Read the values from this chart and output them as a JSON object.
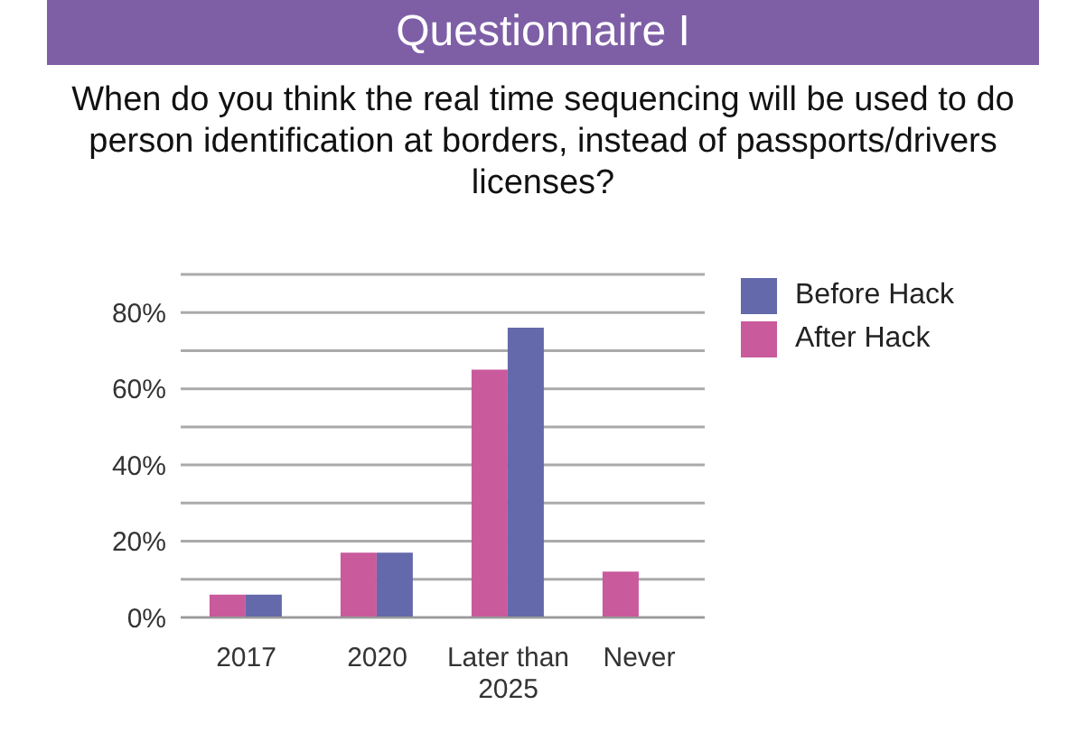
{
  "chart_data": {
    "type": "bar",
    "title": "Questionnaire I",
    "subtitle": "When do you think the real time sequencing will be used to do person identification at borders, instead of passports/drivers licenses?",
    "categories": [
      "2017",
      "2020",
      "Later than 2025",
      "Never"
    ],
    "series": [
      {
        "name": "After Hack",
        "color": "#c95a9c",
        "values": [
          6,
          17,
          65,
          12
        ]
      },
      {
        "name": "Before Hack",
        "color": "#6469ab",
        "values": [
          6,
          17,
          76,
          0
        ]
      }
    ],
    "ylim": [
      0,
      90
    ],
    "yticks": [
      {
        "value": 0,
        "label": "0%"
      },
      {
        "value": 10,
        "label": null
      },
      {
        "value": 20,
        "label": "20%"
      },
      {
        "value": 30,
        "label": null
      },
      {
        "value": 40,
        "label": "40%"
      },
      {
        "value": 50,
        "label": null
      },
      {
        "value": 60,
        "label": "60%"
      },
      {
        "value": 70,
        "label": null
      },
      {
        "value": 80,
        "label": "80%"
      },
      {
        "value": 90,
        "label": null
      }
    ],
    "grid": "y",
    "legend": "top right"
  }
}
